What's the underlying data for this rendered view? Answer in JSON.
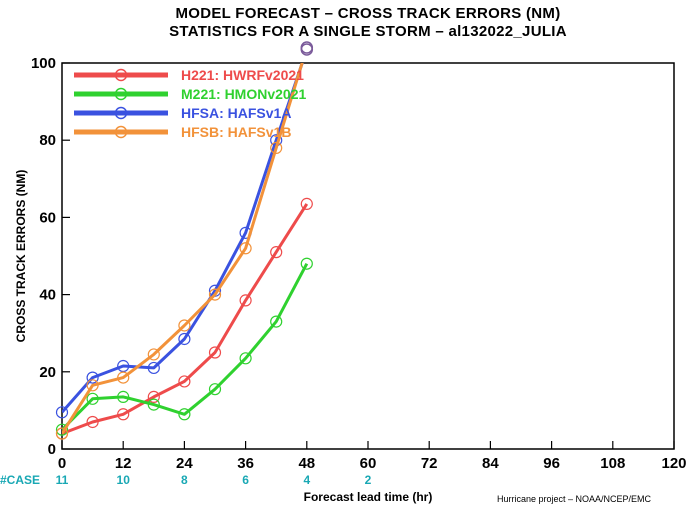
{
  "chart_data": {
    "type": "line",
    "title_line1": "MODEL FORECAST – CROSS TRACK ERRORS (NM)",
    "title_line2": "STATISTICS FOR A SINGLE STORM – al132022_JULIA",
    "xlabel": "Forecast lead time (hr)",
    "ylabel": "CROSS TRACK ERRORS (NM)",
    "xlim": [
      0,
      120
    ],
    "ylim": [
      0,
      100
    ],
    "x_ticks": [
      "0",
      "12",
      "24",
      "36",
      "48",
      "60",
      "72",
      "84",
      "96",
      "108",
      "120"
    ],
    "y_ticks": [
      "0",
      "20",
      "40",
      "60",
      "80",
      "100"
    ],
    "legend_position": "top-left",
    "x": [
      0,
      6,
      12,
      18,
      24,
      30,
      36,
      42,
      48
    ],
    "series": [
      {
        "name": "H221: HWRFv2021",
        "color": "#ee4b4b",
        "values": [
          4,
          7,
          9,
          13.5,
          17.5,
          25,
          38.5,
          51,
          63.5
        ]
      },
      {
        "name": "M221: HMONv2021",
        "color": "#2fd12f",
        "values": [
          5,
          13,
          13.5,
          11.5,
          9,
          15.5,
          23.5,
          33,
          48
        ]
      },
      {
        "name": "HFSA: HAFSv1A",
        "color": "#3a52e0",
        "values": [
          9.5,
          18.5,
          21.5,
          21,
          28.5,
          41,
          56,
          80,
          103.5
        ]
      },
      {
        "name": "HFSB: HAFSv1B",
        "color": "#f2923a",
        "values": [
          4,
          16.5,
          18.5,
          24.5,
          32,
          40,
          52,
          78,
          104
        ]
      }
    ],
    "cases": {
      "label": "#CASE",
      "values": [
        {
          "x": 0,
          "count": "11"
        },
        {
          "x": 12,
          "count": "10"
        },
        {
          "x": 24,
          "count": "8"
        },
        {
          "x": 36,
          "count": "6"
        },
        {
          "x": 48,
          "count": "4"
        },
        {
          "x": 60,
          "count": "2"
        }
      ]
    },
    "credit": "Hurricane project – NOAA/NCEP/EMC"
  }
}
